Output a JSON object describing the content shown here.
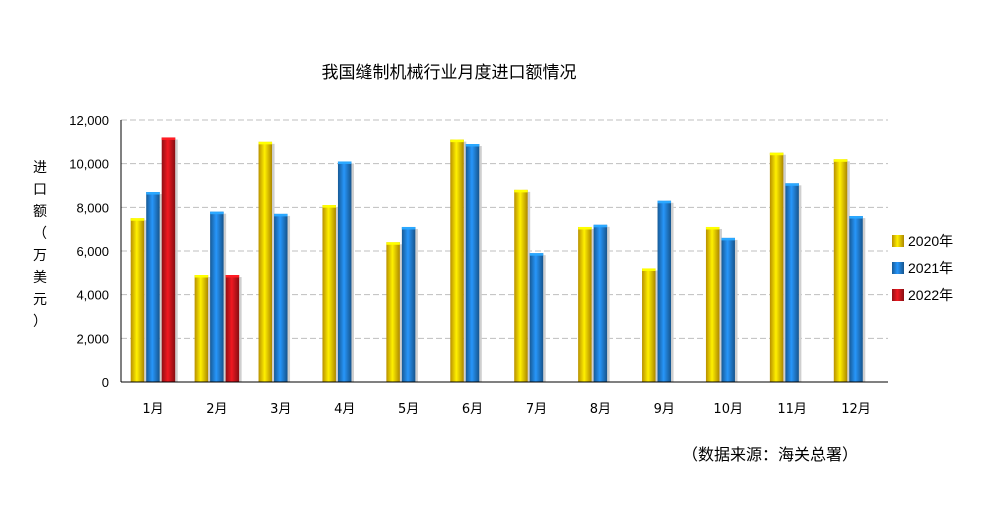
{
  "chart_data": {
    "type": "bar",
    "title": "我国缝制机械行业月度进口额情况",
    "ylabel": "进口额（万美元）",
    "source": "（数据来源：海关总署）",
    "ylim": [
      0,
      12000
    ],
    "yticks": [
      "0",
      "2,000",
      "4,000",
      "6,000",
      "8,000",
      "10,000",
      "12,000"
    ],
    "grid": true,
    "legend_position": "right",
    "categories": [
      "1月",
      "2月",
      "3月",
      "4月",
      "5月",
      "6月",
      "7月",
      "8月",
      "9月",
      "10月",
      "11月",
      "12月"
    ],
    "series": [
      {
        "name": "2020年",
        "color": "#F5C000",
        "values": [
          7500,
          4900,
          11000,
          8100,
          6400,
          11100,
          8800,
          7100,
          5200,
          7100,
          10500,
          10200
        ]
      },
      {
        "name": "2021年",
        "color": "#1F78C8",
        "values": [
          8700,
          7800,
          7700,
          10100,
          7100,
          10900,
          5900,
          7200,
          8300,
          6600,
          9100,
          7600
        ]
      },
      {
        "name": "2022年",
        "color": "#C0141A",
        "values": [
          11200,
          4900,
          null,
          null,
          null,
          null,
          null,
          null,
          null,
          null,
          null,
          null
        ]
      }
    ]
  }
}
